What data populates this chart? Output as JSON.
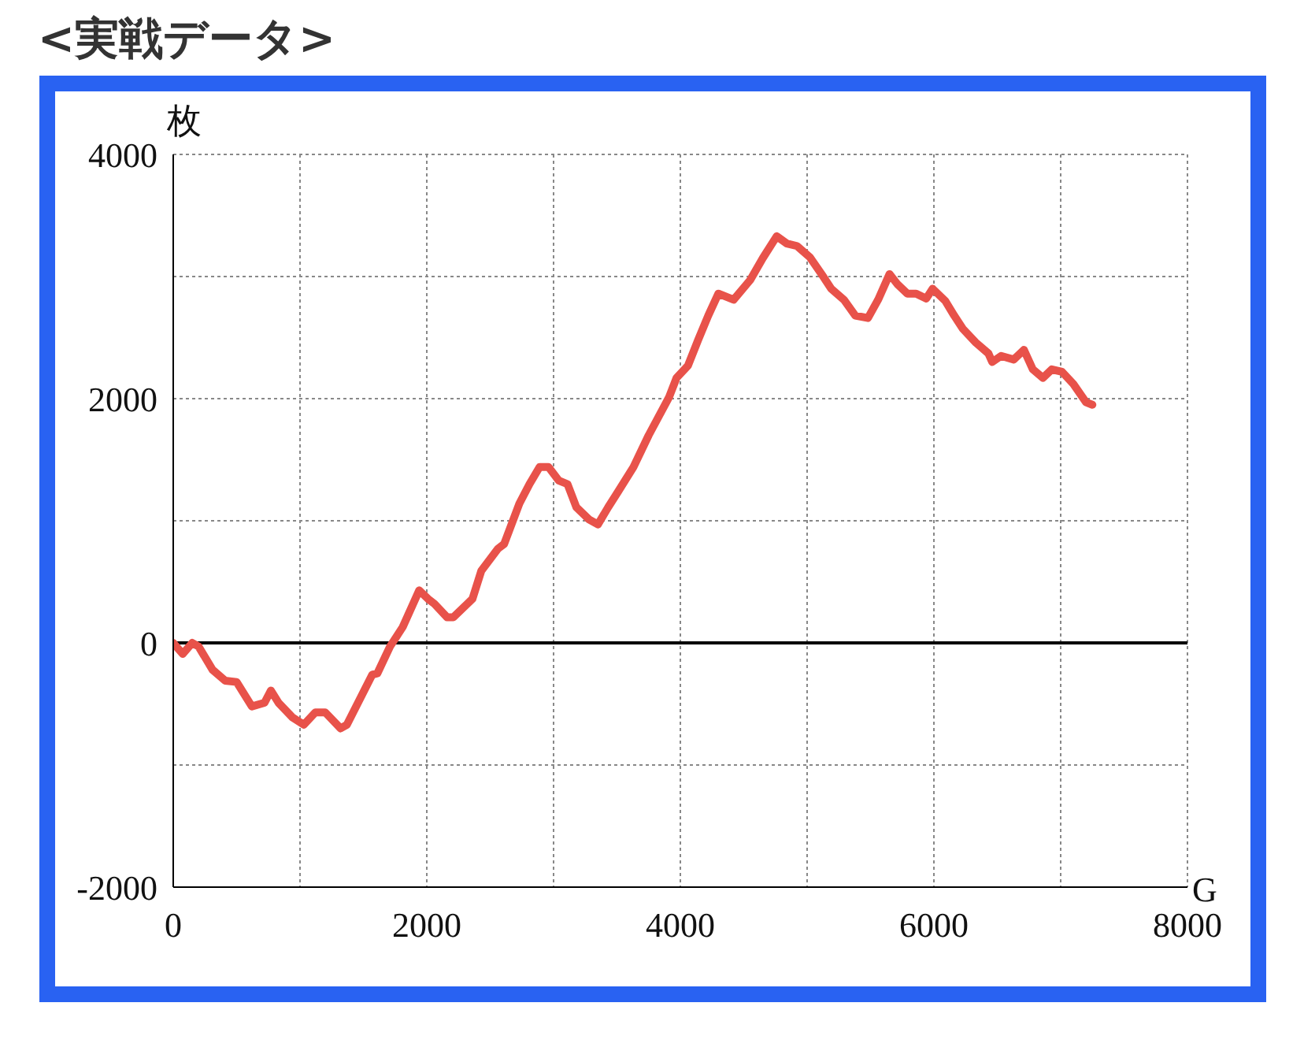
{
  "chart_data": {
    "type": "line",
    "title": "<実戦データ>",
    "xlabel": "G",
    "ylabel": "枚",
    "xlim": [
      0,
      8000
    ],
    "ylim": [
      -2000,
      4000
    ],
    "xticks": [
      0,
      {
        "value": 1000,
        "label": null
      },
      2000,
      {
        "value": 3000,
        "label": null
      },
      4000,
      {
        "value": 5000,
        "label": null
      },
      6000,
      {
        "value": 7000,
        "label": null
      },
      8000
    ],
    "yticks": [
      -2000,
      {
        "value": -1000,
        "label": null
      },
      0,
      {
        "value": 1000,
        "label": null
      },
      2000,
      {
        "value": 3000,
        "label": null
      },
      4000
    ],
    "grid": true,
    "line_style": "solid",
    "ref_lines": [
      {
        "axis": "y",
        "value": 0,
        "label": null,
        "color": "#000000"
      }
    ],
    "series": [
      {
        "color": "#e8524a",
        "x": [
          0,
          75,
          150,
          200,
          310,
          410,
          500,
          620,
          720,
          770,
          830,
          940,
          1030,
          1120,
          1200,
          1320,
          1370,
          1570,
          1610,
          1710,
          1810,
          1940,
          2010,
          2060,
          2160,
          2210,
          2360,
          2430,
          2560,
          2610,
          2730,
          2810,
          2890,
          2960,
          3040,
          3110,
          3180,
          3280,
          3350,
          3430,
          3510,
          3630,
          3750,
          3910,
          3970,
          4060,
          4140,
          4220,
          4300,
          4420,
          4550,
          4650,
          4760,
          4840,
          4920,
          5020,
          5120,
          5190,
          5290,
          5380,
          5480,
          5560,
          5650,
          5710,
          5790,
          5860,
          5940,
          5990,
          6090,
          6160,
          6230,
          6330,
          6430,
          6460,
          6530,
          6630,
          6710,
          6780,
          6860,
          6930,
          7010,
          7100,
          7200,
          7250
        ],
        "values": [
          0,
          -90,
          0,
          -30,
          -220,
          -310,
          -320,
          -520,
          -490,
          -390,
          -490,
          -610,
          -670,
          -570,
          -570,
          -700,
          -670,
          -260,
          -250,
          -30,
          130,
          430,
          360,
          320,
          210,
          210,
          360,
          590,
          770,
          810,
          1140,
          1300,
          1440,
          1440,
          1330,
          1300,
          1110,
          1010,
          970,
          1110,
          1240,
          1440,
          1700,
          2010,
          2170,
          2270,
          2480,
          2680,
          2860,
          2810,
          2970,
          3150,
          3330,
          3270,
          3250,
          3160,
          3010,
          2900,
          2810,
          2680,
          2660,
          2810,
          3020,
          2940,
          2860,
          2860,
          2820,
          2900,
          2800,
          2680,
          2570,
          2460,
          2370,
          2300,
          2350,
          2320,
          2400,
          2240,
          2170,
          2240,
          2220,
          2120,
          1970,
          1950
        ]
      }
    ]
  }
}
